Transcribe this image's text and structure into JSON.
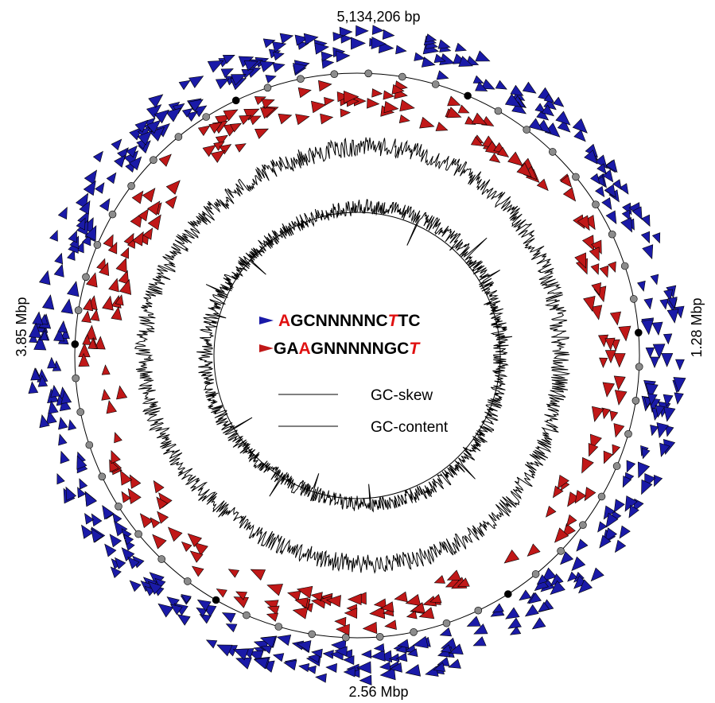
{
  "axis_labels": {
    "top": "5,134,206 bp",
    "right": "1.28 Mbp",
    "bottom": "2.56 Mbp",
    "left": "3.85 Mbp"
  },
  "motifs": [
    {
      "strand": "forward",
      "arrow_color": "#1a1aa8",
      "segments": [
        {
          "text": "A",
          "color": "#e01010",
          "italic": false
        },
        {
          "text": "GCNNNNNC",
          "color": "#000000",
          "italic": false
        },
        {
          "text": "T",
          "color": "#e01010",
          "italic": true
        },
        {
          "text": "TC",
          "color": "#000000",
          "italic": false
        }
      ]
    },
    {
      "strand": "reverse",
      "arrow_color": "#c01818",
      "segments": [
        {
          "text": "GA",
          "color": "#000000",
          "italic": false
        },
        {
          "text": "A",
          "color": "#e01010",
          "italic": false
        },
        {
          "text": "GNNNNNGC",
          "color": "#000000",
          "italic": false
        },
        {
          "text": "T",
          "color": "#e01010",
          "italic": true
        }
      ]
    }
  ],
  "legend": [
    {
      "label": "GC-skew"
    },
    {
      "label": "GC-content"
    }
  ],
  "colors": {
    "forward_triangle": "#1a1aa8",
    "reverse_triangle": "#c01818",
    "minor_marker": "#8c8c8c",
    "major_marker": "#000000",
    "line": "#000000"
  }
}
